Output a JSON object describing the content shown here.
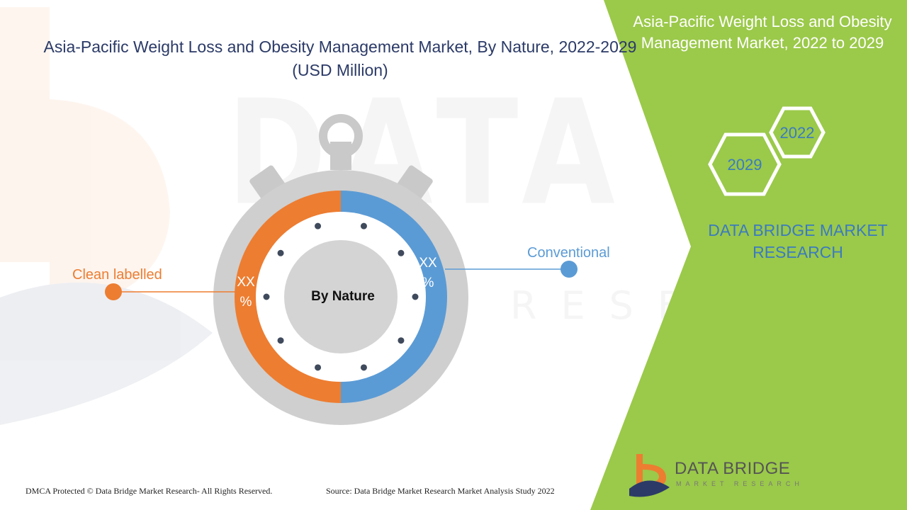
{
  "chart_data": {
    "type": "pie",
    "title": "Asia-Pacific Weight Loss and Obesity Management Market, By Nature, 2022-2029 (USD Million)",
    "center_label": "By Nature",
    "slices": [
      {
        "name": "Conventional",
        "value": 50,
        "label": "XX %",
        "color": "#5b9bd5"
      },
      {
        "name": "Clean labelled",
        "value": 50,
        "label": "XX %",
        "color": "#ed7d31"
      }
    ]
  },
  "side_panel": {
    "title": "Asia-Pacific Weight Loss and Obesity Management Market, 2022 to 2029",
    "year_start": "2022",
    "year_end": "2029",
    "brand": "DATA BRIDGE MARKET RESEARCH",
    "color": "#9bc94a"
  },
  "logo": {
    "name": "DATA BRIDGE",
    "sub": "MARKET RESEARCH"
  },
  "footer": {
    "copyright": "DMCA Protected © Data Bridge Market Research- All Rights Reserved.",
    "source": "Source: Data Bridge Market Research Market Analysis Study 2022"
  },
  "watermark": {
    "line1": "DATA BRIDGE",
    "line2": "RESEARCH"
  }
}
